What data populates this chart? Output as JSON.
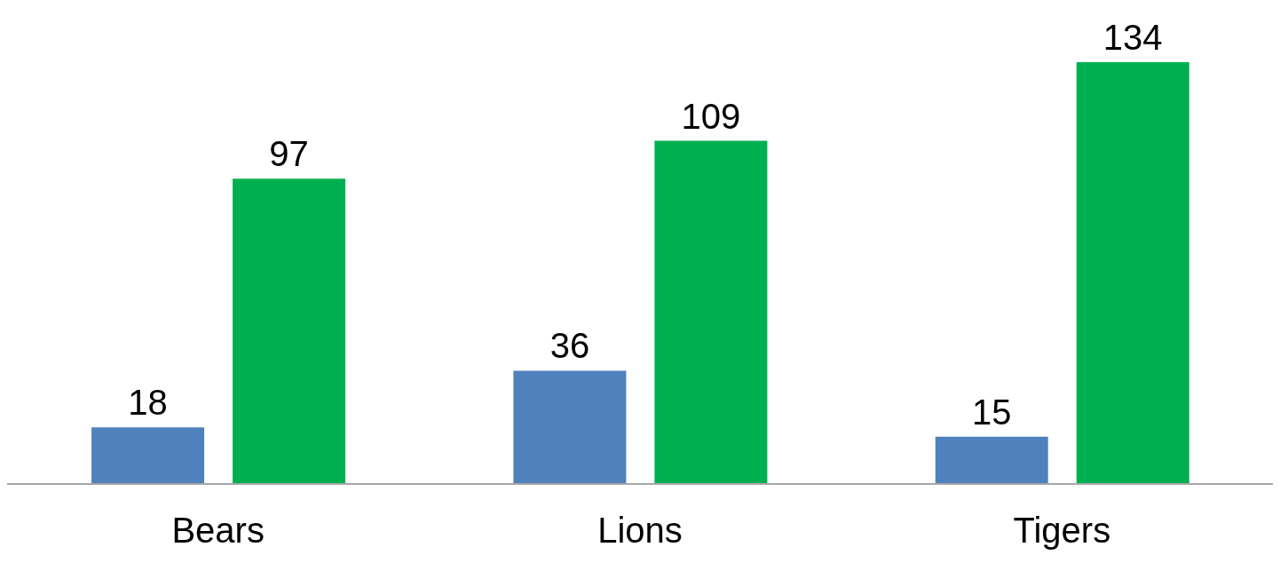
{
  "chart_data": {
    "type": "bar",
    "categories": [
      "Bears",
      "Lions",
      "Tigers"
    ],
    "series": [
      {
        "color": "#4f81bd",
        "values": [
          18,
          36,
          15
        ]
      },
      {
        "color": "#00b050",
        "values": [
          97,
          109,
          134
        ]
      }
    ],
    "data_labels": true,
    "legend": false,
    "grid": false
  }
}
